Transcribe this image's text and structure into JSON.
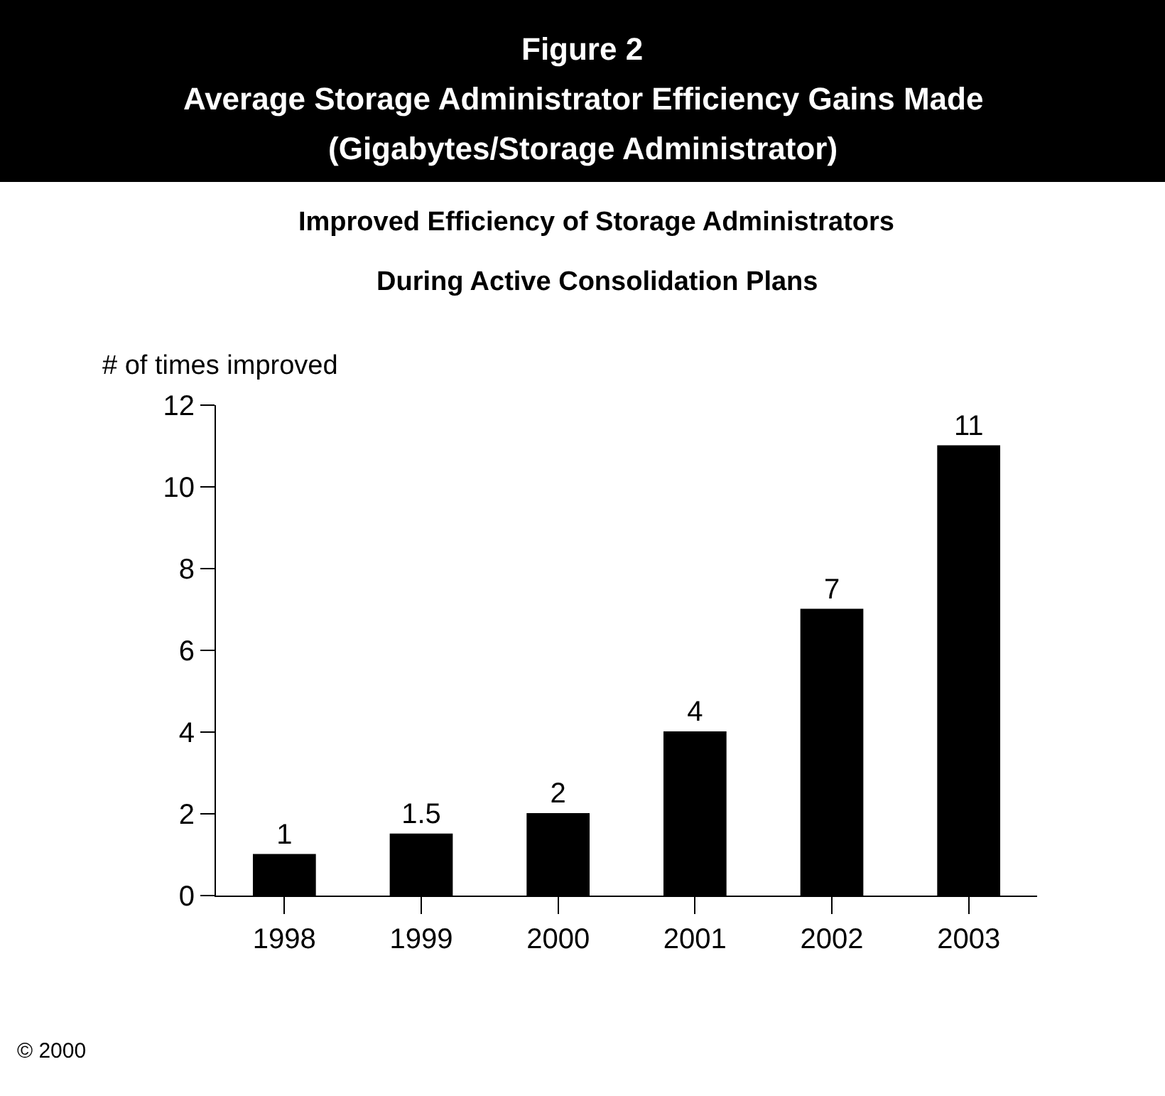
{
  "chart_data": {
    "type": "bar",
    "title": "Figure 2\nAverage Storage Administrator Efficiency Gains Made\n(Gigabytes/Storage Administrator)",
    "subtitle": "Improved Efficiency of Storage Administrators\nDuring Active Consolidation Plans",
    "ylabel": "# of times improved",
    "categories": [
      "1998",
      "1999",
      "2000",
      "2001",
      "2002",
      "2003"
    ],
    "values": [
      1,
      1.5,
      2,
      4,
      7,
      11
    ],
    "color": "#000000",
    "ylim": [
      0,
      12
    ],
    "yticks": [
      0,
      2,
      4,
      6,
      8,
      10,
      12
    ],
    "data_labels": true,
    "annotations": [
      "© 2000"
    ]
  }
}
